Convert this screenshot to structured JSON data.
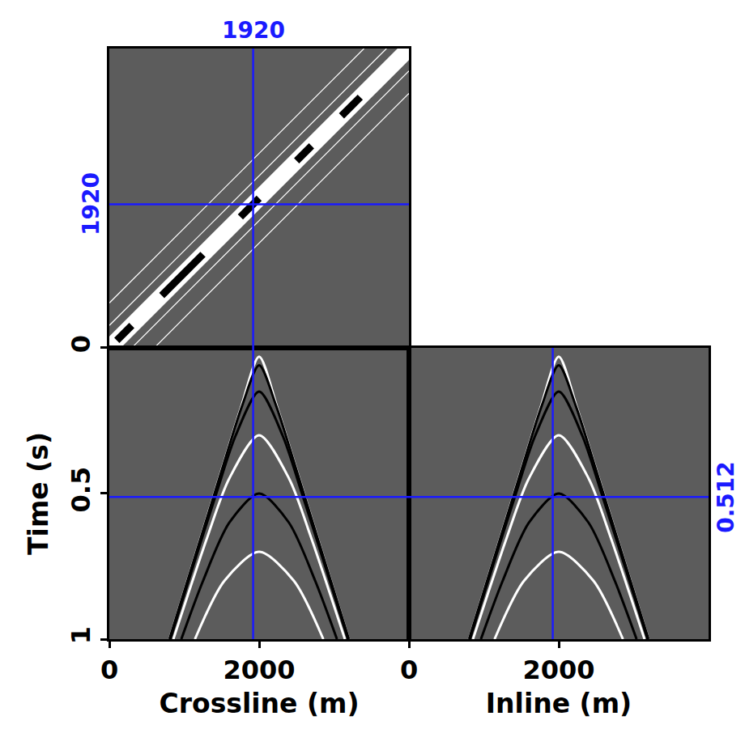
{
  "chart_data": [
    {
      "type": "line",
      "xlim": [
        0,
        4000
      ],
      "ylim": [
        0,
        4000
      ],
      "tick_labels": false,
      "cursors": [
        {
          "axis": "x",
          "value": 1920,
          "label": "1920",
          "color": "#1a1aff"
        },
        {
          "axis": "y",
          "value": 1920,
          "label": "1920",
          "color": "#1a1aff"
        }
      ],
      "series": [
        {
          "color": "#ffffff",
          "line_style": "thin",
          "x": [
            0,
            3400
          ],
          "values": [
            600,
            4000
          ]
        },
        {
          "color": "#ffffff",
          "line_style": "thin",
          "x": [
            600,
            4000
          ],
          "values": [
            0,
            3400
          ]
        },
        {
          "color": "#ffffff",
          "line_style": "thin",
          "x": [
            0,
            3700
          ],
          "values": [
            300,
            4000
          ]
        },
        {
          "color": "#ffffff",
          "line_style": "thin",
          "x": [
            300,
            4000
          ],
          "values": [
            0,
            3700
          ]
        },
        {
          "color": "#ffffff",
          "line_style": "thick",
          "x": [
            0,
            4000
          ],
          "values": [
            0,
            4000
          ]
        },
        {
          "color": "#000000",
          "line_style": "bold",
          "x": [
            100,
            300,
            null,
            700,
            1250,
            null,
            1750,
            2000,
            null,
            2500,
            2700,
            null,
            3100,
            3350
          ],
          "values": [
            100,
            300,
            null,
            700,
            1250,
            null,
            1750,
            2000,
            null,
            2500,
            2700,
            null,
            3100,
            3350
          ]
        }
      ]
    },
    {
      "type": "line",
      "xlabel": "Crossline (m)",
      "ylabel": "Time (s)",
      "xlim": [
        0,
        4000
      ],
      "ylim": [
        1,
        0
      ],
      "xticks": [
        0,
        2000
      ],
      "yticks": [
        0,
        0.5,
        1
      ],
      "cursors": [
        {
          "axis": "x",
          "value": 1920,
          "color": "#1a1aff"
        },
        {
          "axis": "y",
          "value": 0.512,
          "color": "#1a1aff"
        }
      ],
      "series": [
        {
          "color": "#ffffff",
          "line_style": "normal",
          "x": [
            801,
            1041,
            1281,
            1521,
            1763,
            2000,
            2237,
            2479,
            2719,
            2959,
            3199
          ],
          "values": [
            1,
            0.8,
            0.6,
            0.4,
            0.2,
            0.03,
            0.2,
            0.4,
            0.6,
            0.8,
            1
          ]
        },
        {
          "color": "#000000",
          "line_style": "normal",
          "x": [
            802,
            1043,
            1284,
            1525,
            1771,
            2000,
            2229,
            2475,
            2716,
            2957,
            3198
          ],
          "values": [
            1,
            0.8,
            0.6,
            0.4,
            0.2,
            0.06,
            0.2,
            0.4,
            0.6,
            0.8,
            1
          ]
        },
        {
          "color": "#000000",
          "line_style": "normal",
          "x": [
            814,
            1118,
            1428,
            1688,
            2000,
            2312,
            2572,
            2882,
            3186
          ],
          "values": [
            1,
            0.75,
            0.5,
            0.3,
            0.15,
            0.3,
            0.5,
            0.75,
            1
          ]
        },
        {
          "color": "#ffffff",
          "line_style": "normal",
          "x": [
            855,
            1046,
            1308,
            1598,
            2000,
            2402,
            2692,
            2954,
            3145
          ],
          "values": [
            1,
            0.85,
            0.65,
            0.45,
            0.3,
            0.45,
            0.65,
            0.85,
            1
          ]
        },
        {
          "color": "#000000",
          "line_style": "normal",
          "x": [
            961,
            1251,
            1602,
            2000,
            2398,
            2749,
            3039
          ],
          "values": [
            1,
            0.8,
            0.6,
            0.5,
            0.6,
            0.8,
            1
          ]
        },
        {
          "color": "#ffffff",
          "line_style": "normal",
          "x": [
            1143,
            1535,
            2000,
            2465,
            2857
          ],
          "values": [
            1,
            0.8,
            0.7,
            0.8,
            1
          ]
        }
      ]
    },
    {
      "type": "line",
      "xlabel": "Inline (m)",
      "xlim": [
        0,
        4000
      ],
      "ylim": [
        1,
        0
      ],
      "xticks": [
        0,
        2000
      ],
      "yticks": [
        0,
        0.5,
        1
      ],
      "tick_labels": "x",
      "cursors": [
        {
          "axis": "x",
          "value": 1920,
          "color": "#1a1aff"
        },
        {
          "axis": "y",
          "value": 0.512,
          "label": "0.512",
          "color": "#1a1aff"
        }
      ],
      "series": [
        {
          "color": "#ffffff",
          "line_style": "normal",
          "x": [
            801,
            1041,
            1281,
            1521,
            1763,
            2000,
            2237,
            2479,
            2719,
            2959,
            3199
          ],
          "values": [
            1,
            0.8,
            0.6,
            0.4,
            0.2,
            0.03,
            0.2,
            0.4,
            0.6,
            0.8,
            1
          ]
        },
        {
          "color": "#000000",
          "line_style": "normal",
          "x": [
            802,
            1043,
            1284,
            1525,
            1771,
            2000,
            2229,
            2475,
            2716,
            2957,
            3198
          ],
          "values": [
            1,
            0.8,
            0.6,
            0.4,
            0.2,
            0.06,
            0.2,
            0.4,
            0.6,
            0.8,
            1
          ]
        },
        {
          "color": "#000000",
          "line_style": "normal",
          "x": [
            814,
            1118,
            1428,
            1688,
            2000,
            2312,
            2572,
            2882,
            3186
          ],
          "values": [
            1,
            0.75,
            0.5,
            0.3,
            0.15,
            0.3,
            0.5,
            0.75,
            1
          ]
        },
        {
          "color": "#ffffff",
          "line_style": "normal",
          "x": [
            855,
            1046,
            1308,
            1598,
            2000,
            2402,
            2692,
            2954,
            3145
          ],
          "values": [
            1,
            0.85,
            0.65,
            0.45,
            0.3,
            0.45,
            0.65,
            0.85,
            1
          ]
        },
        {
          "color": "#000000",
          "line_style": "normal",
          "x": [
            961,
            1251,
            1602,
            2000,
            2398,
            2749,
            3039
          ],
          "values": [
            1,
            0.8,
            0.6,
            0.5,
            0.6,
            0.8,
            1
          ]
        },
        {
          "color": "#ffffff",
          "line_style": "normal",
          "x": [
            1143,
            1535,
            2000,
            2465,
            2857
          ],
          "values": [
            1,
            0.8,
            0.7,
            0.8,
            1
          ]
        }
      ]
    }
  ]
}
